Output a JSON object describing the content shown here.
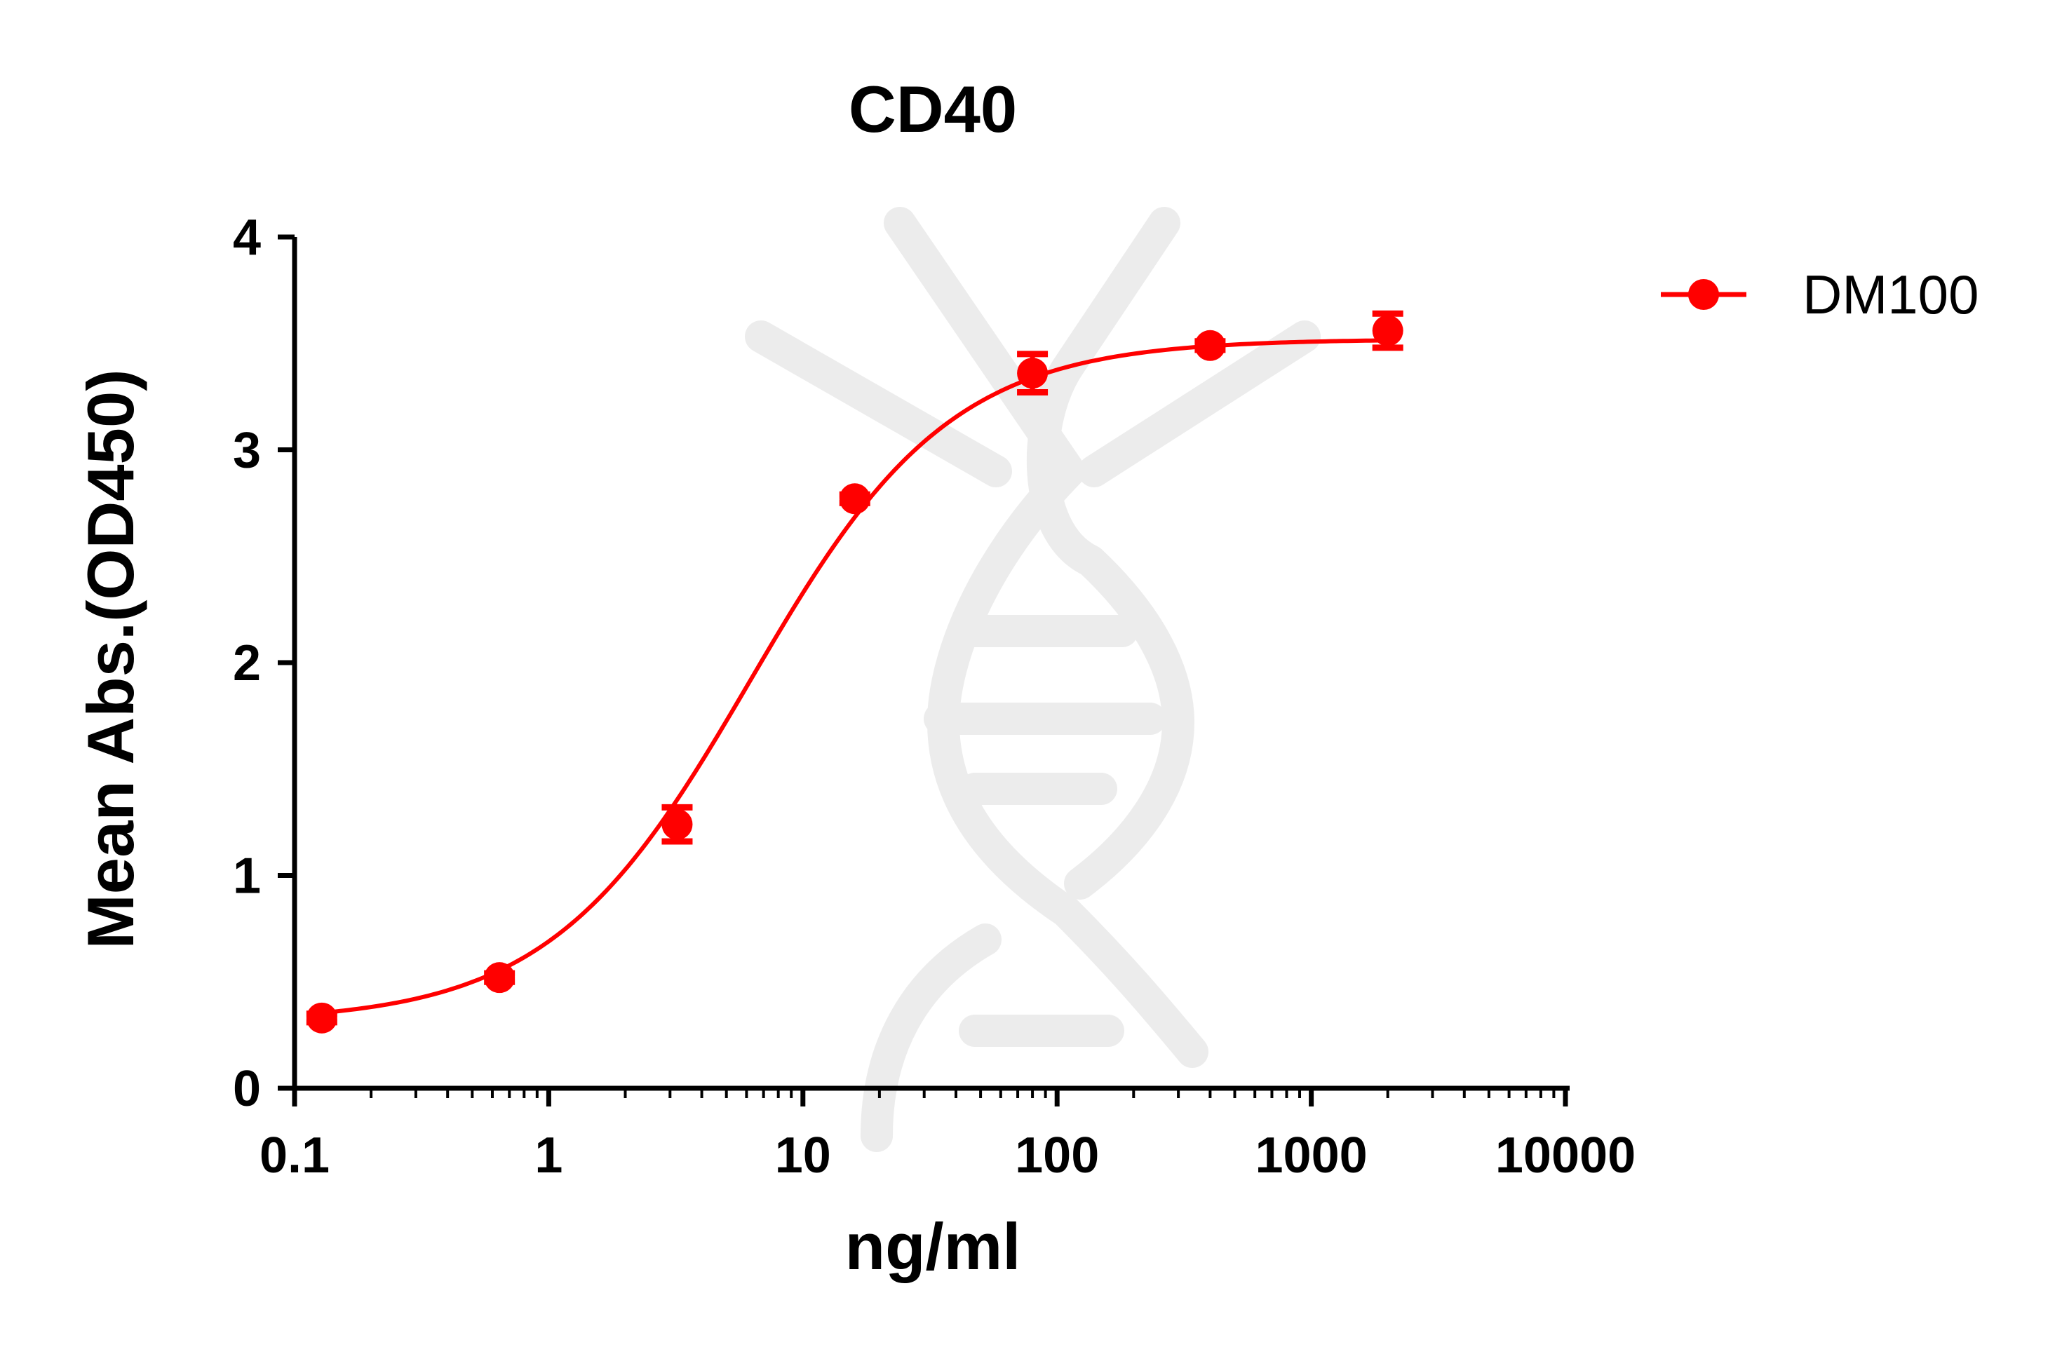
{
  "chart_data": {
    "type": "scatter",
    "title": "CD40",
    "xlabel": "ng/ml",
    "ylabel": "Mean Abs.(OD450)",
    "x_scale": "log",
    "xlim": [
      0.1,
      10000
    ],
    "ylim": [
      0,
      4
    ],
    "x_ticks": [
      0.1,
      1,
      10,
      100,
      1000,
      10000
    ],
    "x_tick_labels": [
      "0.1",
      "1",
      "10",
      "100",
      "1000",
      "10000"
    ],
    "y_ticks": [
      0,
      1,
      2,
      3,
      4
    ],
    "y_tick_labels": [
      "0",
      "1",
      "2",
      "3",
      "4"
    ],
    "grid": false,
    "legend_position": "top-right",
    "series": [
      {
        "name": "DM100",
        "color": "#ff0000",
        "marker": "circle",
        "fit": "four-parameter logistic",
        "points": [
          {
            "x": 0.128,
            "y": 0.33,
            "err": 0.02
          },
          {
            "x": 0.64,
            "y": 0.52,
            "err": 0.02
          },
          {
            "x": 3.2,
            "y": 1.24,
            "err": 0.08
          },
          {
            "x": 16,
            "y": 2.77,
            "err": 0.02
          },
          {
            "x": 80,
            "y": 3.36,
            "err": 0.09
          },
          {
            "x": 400,
            "y": 3.49,
            "err": 0.02
          },
          {
            "x": 2000,
            "y": 3.56,
            "err": 0.08
          }
        ],
        "curve": {
          "bottom": 0.31,
          "top": 3.52,
          "ec50": 6.2,
          "hill": 1.1
        }
      }
    ]
  }
}
